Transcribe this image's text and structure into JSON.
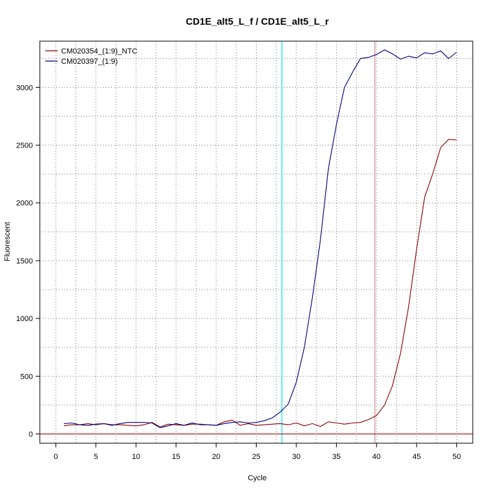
{
  "chart_data": {
    "type": "line",
    "title": "CD1E_alt5_L_f / CD1E_alt5_L_r",
    "xlabel": "Cycle",
    "ylabel": "Fluorescent",
    "xlim": [
      -2,
      52
    ],
    "ylim": [
      -80,
      3400
    ],
    "x_ticks": [
      0,
      5,
      10,
      15,
      20,
      25,
      30,
      35,
      40,
      45,
      50
    ],
    "x_tick_labels": [
      "0",
      "5",
      "10",
      "15",
      "20",
      "25",
      "30",
      "35",
      "40",
      "45",
      "50"
    ],
    "y_ticks": [
      0,
      500,
      1000,
      1500,
      2000,
      2500,
      3000
    ],
    "y_tick_labels": [
      "0",
      "500",
      "1000",
      "1500",
      "2000",
      "2500",
      "3000"
    ],
    "grid": true,
    "legend_position": "top-left",
    "threshold_y": 0,
    "vlines": [
      {
        "x": 28.2,
        "color": "#00e5ee"
      },
      {
        "x": 39.8,
        "color": "#cd8c95"
      }
    ],
    "series": [
      {
        "name": "CM020354_(1:9)_NTC",
        "color": "#8b0000",
        "x": [
          1,
          2,
          3,
          4,
          5,
          6,
          7,
          8,
          9,
          10,
          11,
          12,
          13,
          14,
          15,
          16,
          17,
          18,
          19,
          20,
          21,
          22,
          23,
          24,
          25,
          26,
          27,
          28,
          29,
          30,
          31,
          32,
          33,
          34,
          35,
          36,
          37,
          38,
          39,
          40,
          41,
          42,
          43,
          44,
          45,
          46,
          47,
          48,
          49,
          50
        ],
        "y": [
          70,
          80,
          80,
          90,
          80,
          90,
          80,
          80,
          75,
          70,
          80,
          100,
          60,
          85,
          80,
          75,
          85,
          85,
          80,
          75,
          105,
          120,
          75,
          90,
          75,
          80,
          85,
          90,
          80,
          95,
          70,
          90,
          65,
          105,
          95,
          85,
          95,
          100,
          125,
          160,
          250,
          420,
          700,
          1100,
          1600,
          2050,
          2250,
          2480,
          2550,
          2545
        ]
      },
      {
        "name": "CM020397_(1:9)",
        "color": "#000080",
        "x": [
          1,
          2,
          3,
          4,
          5,
          6,
          7,
          8,
          9,
          10,
          11,
          12,
          13,
          14,
          15,
          16,
          17,
          18,
          19,
          20,
          21,
          22,
          23,
          24,
          25,
          26,
          27,
          28,
          29,
          30,
          31,
          32,
          33,
          34,
          35,
          36,
          37,
          38,
          39,
          40,
          41,
          42,
          43,
          44,
          45,
          46,
          47,
          48,
          49,
          50
        ],
        "y": [
          90,
          95,
          80,
          75,
          85,
          90,
          75,
          90,
          100,
          100,
          100,
          95,
          55,
          70,
          90,
          75,
          95,
          80,
          80,
          75,
          90,
          100,
          105,
          95,
          100,
          115,
          140,
          190,
          260,
          450,
          750,
          1180,
          1680,
          2300,
          2680,
          3000,
          3130,
          3250,
          3260,
          3285,
          3325,
          3290,
          3245,
          3270,
          3255,
          3300,
          3290,
          3315,
          3250,
          3305
        ]
      }
    ]
  }
}
